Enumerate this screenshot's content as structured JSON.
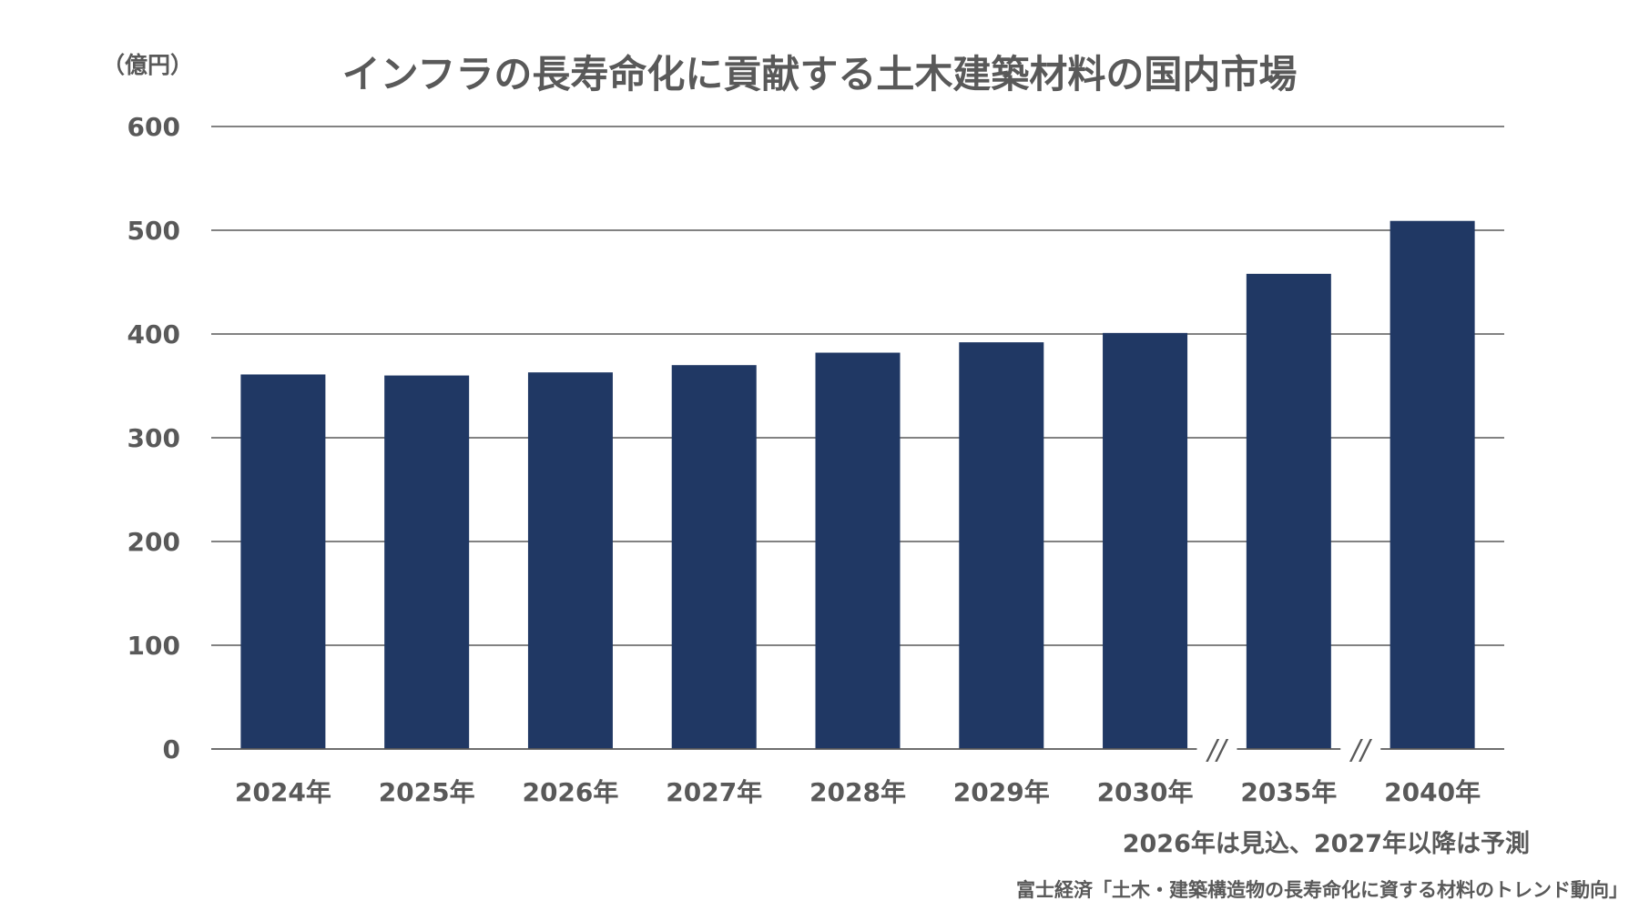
{
  "chart_data": {
    "type": "bar",
    "title": "インフラの長寿命化に貢献する土木建築材料の国内市場",
    "ylabel": "（億円）",
    "xlabel": "",
    "ylim": [
      0,
      600
    ],
    "yticks": [
      0,
      100,
      200,
      300,
      400,
      500,
      600
    ],
    "grid": true,
    "categories": [
      "2024年",
      "2025年",
      "2026年",
      "2027年",
      "2028年",
      "2029年",
      "2030年",
      "2035年",
      "2040年"
    ],
    "values": [
      361,
      360,
      363,
      370,
      382,
      392,
      401,
      458,
      509
    ],
    "axis_breaks_after": [
      "2030年",
      "2035年"
    ],
    "axis_break_mark": "//",
    "bar_color": "#203864",
    "grid_color": "#595959",
    "text_color": "#595959"
  },
  "note": "2026年は見込、2027年以降は予測",
  "source": "富士経済「土木・建築構造物の長寿命化に資する材料のトレンド動向」"
}
